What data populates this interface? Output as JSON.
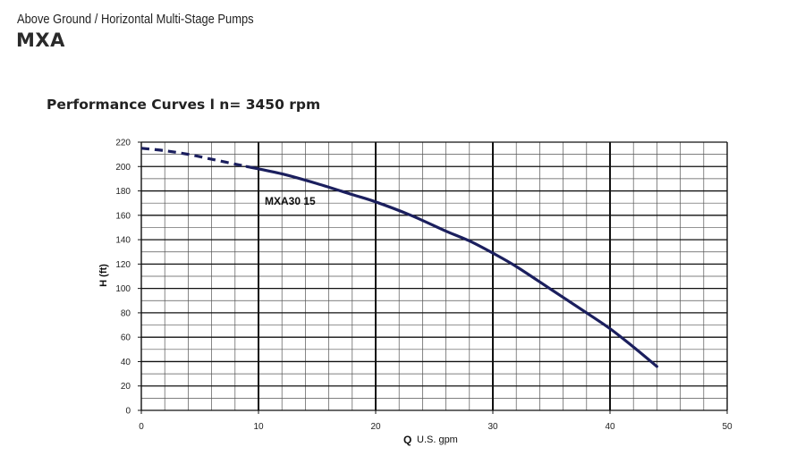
{
  "header": {
    "subtitle": "Above Ground / Horizontal Multi-Stage Pumps",
    "model": "MXA"
  },
  "section_title": "Performance Curves l  n= 3450 rpm",
  "chart_data": {
    "type": "line",
    "title": "",
    "xlabel_symbol": "Q",
    "xlabel": "U.S. gpm",
    "ylabel": "H (ft)",
    "xlim": [
      0,
      50
    ],
    "ylim": [
      0,
      220
    ],
    "x_ticks": [
      0,
      10,
      20,
      30,
      40,
      50
    ],
    "y_ticks": [
      0,
      20,
      40,
      60,
      80,
      100,
      120,
      140,
      160,
      180,
      200,
      220
    ],
    "grid": true,
    "curve_color": "#1b1f5e",
    "series": [
      {
        "name": "MXA30 15",
        "dashed_points": [
          [
            0,
            215
          ],
          [
            2,
            213
          ],
          [
            4,
            210
          ],
          [
            6,
            206
          ],
          [
            8,
            202
          ],
          [
            9,
            200
          ]
        ],
        "solid_points": [
          [
            9,
            200
          ],
          [
            12,
            194
          ],
          [
            15,
            186
          ],
          [
            18,
            177
          ],
          [
            20,
            171
          ],
          [
            23,
            160
          ],
          [
            26,
            147
          ],
          [
            28,
            139
          ],
          [
            30,
            129
          ],
          [
            32,
            118
          ],
          [
            35,
            99
          ],
          [
            38,
            80
          ],
          [
            40,
            67
          ],
          [
            42,
            52
          ],
          [
            44,
            36
          ]
        ]
      }
    ]
  }
}
